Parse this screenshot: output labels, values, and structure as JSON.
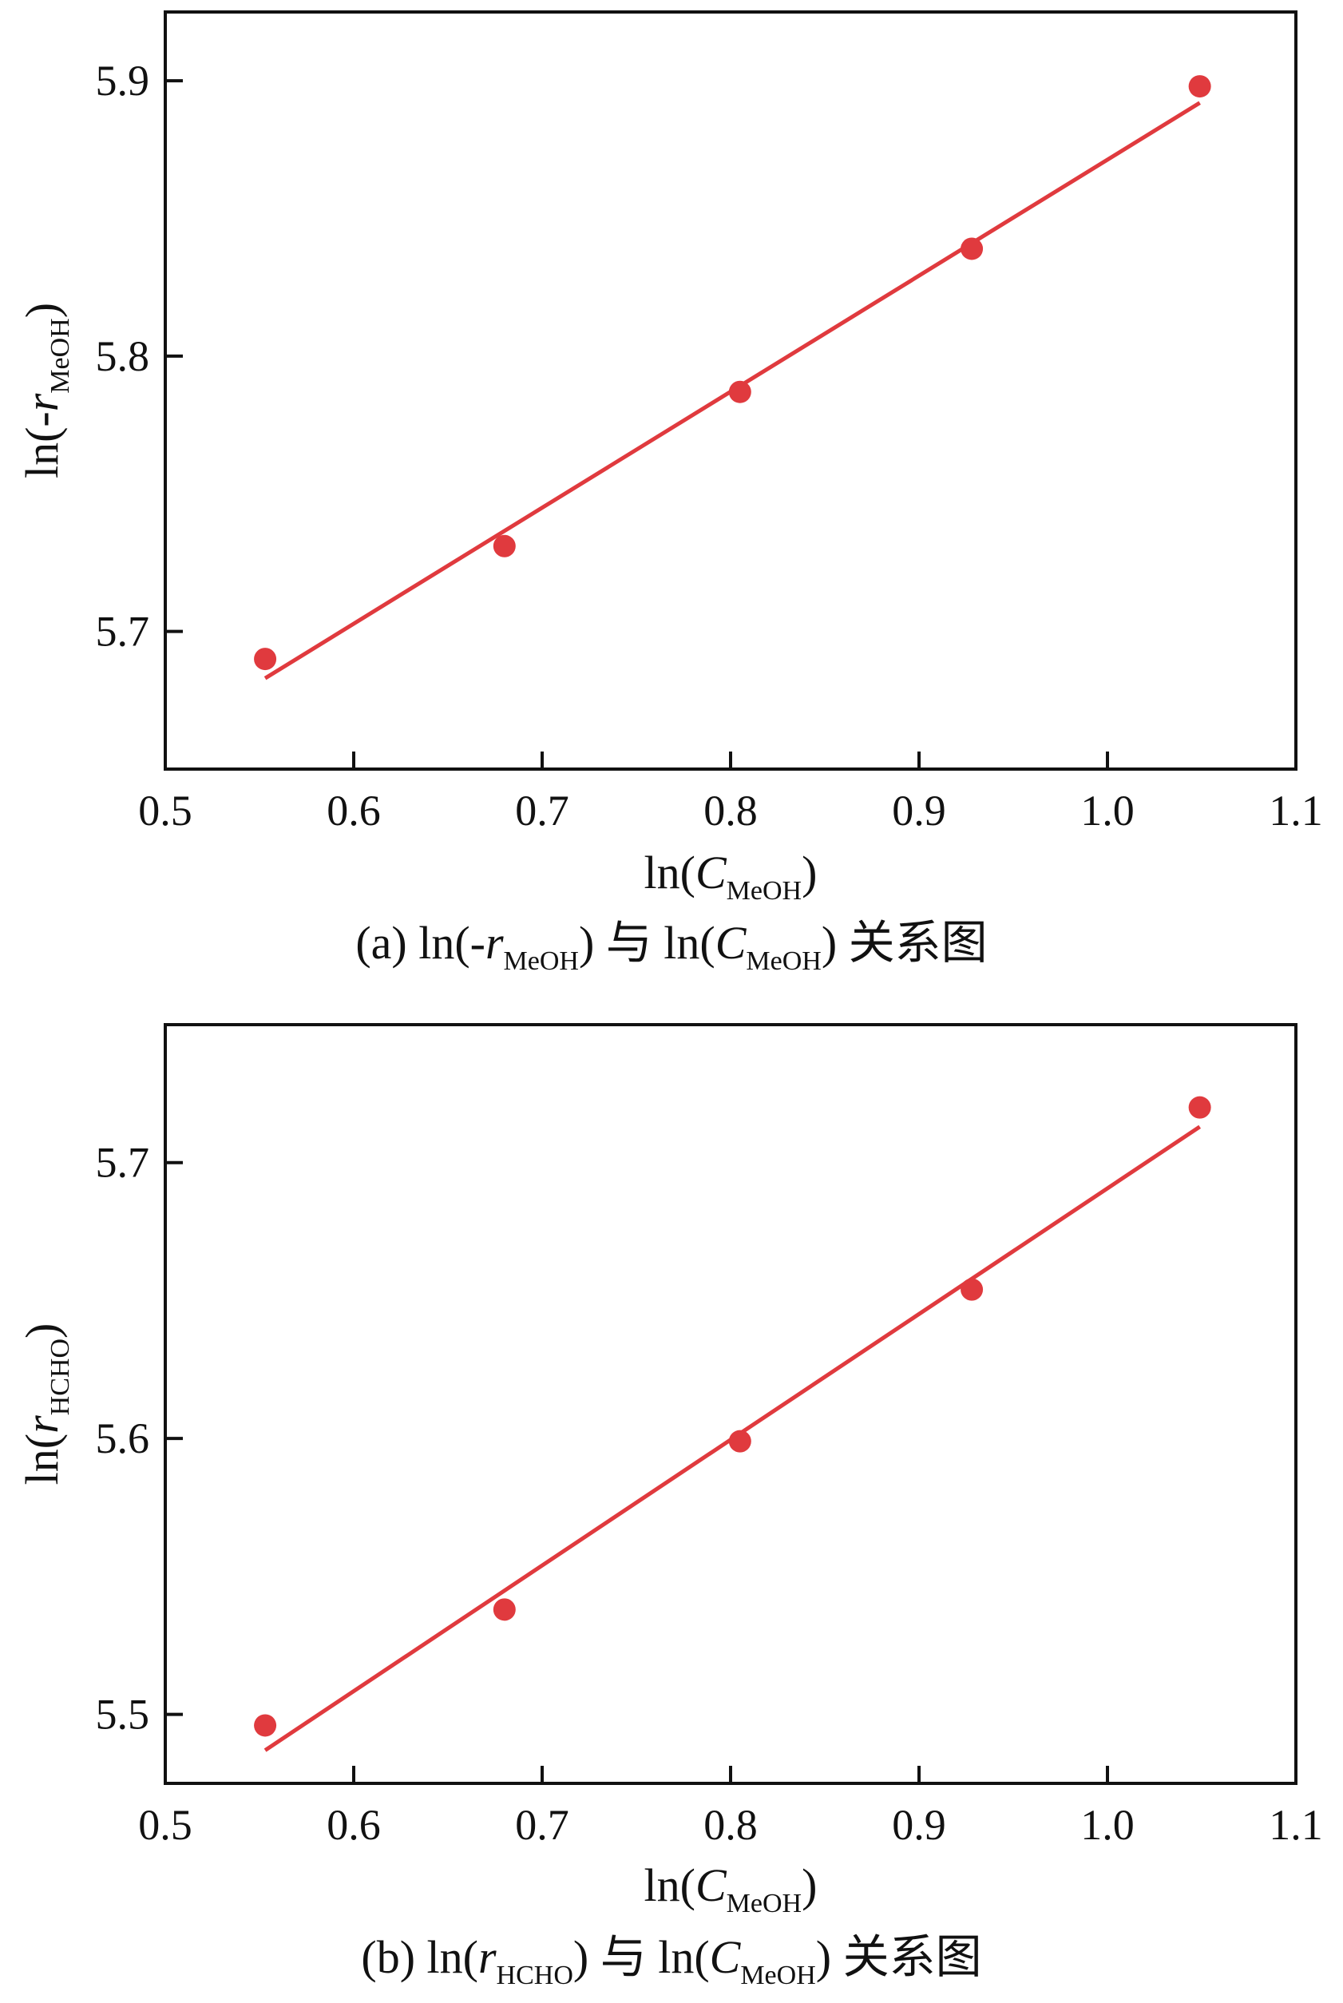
{
  "colors": {
    "series": "#e03a3e",
    "axis": "#111111"
  },
  "chart_data": [
    {
      "type": "scatter",
      "panel": "a",
      "x": [
        0.553,
        0.68,
        0.805,
        0.928,
        1.049
      ],
      "y": [
        5.69,
        5.731,
        5.787,
        5.839,
        5.898
      ],
      "fit_line": {
        "x": [
          0.553,
          1.049
        ],
        "y": [
          5.683,
          5.892
        ]
      },
      "xlim": [
        0.5,
        1.1
      ],
      "ylim": [
        5.65,
        5.925
      ],
      "xticks": [
        0.5,
        0.6,
        0.7,
        0.8,
        0.9,
        1.0,
        1.1
      ],
      "xtick_labels": [
        "0.5",
        "0.6",
        "0.7",
        "0.8",
        "0.9",
        "1.0",
        "1.1"
      ],
      "yticks": [
        5.7,
        5.8,
        5.9
      ],
      "ytick_labels": [
        "5.7",
        "5.8",
        "5.9"
      ],
      "xlabel": {
        "main": "ln(",
        "var": "C",
        "sub": "MeOH",
        "close": ")"
      },
      "ylabel": {
        "main": "ln(-",
        "var": "r",
        "sub": "MeOH",
        "close": ")"
      },
      "caption": {
        "p1": "(a) ln(-",
        "v1": "r",
        "s1": "MeOH",
        "p2": ") 与 ln(",
        "v2": "C",
        "s2": "MeOH",
        "p3": ") 关系图"
      }
    },
    {
      "type": "scatter",
      "panel": "b",
      "x": [
        0.553,
        0.68,
        0.805,
        0.928,
        1.049
      ],
      "y": [
        5.496,
        5.538,
        5.599,
        5.654,
        5.72
      ],
      "fit_line": {
        "x": [
          0.553,
          1.049
        ],
        "y": [
          5.487,
          5.713
        ]
      },
      "xlim": [
        0.5,
        1.1
      ],
      "ylim": [
        5.475,
        5.75
      ],
      "xticks": [
        0.5,
        0.6,
        0.7,
        0.8,
        0.9,
        1.0,
        1.1
      ],
      "xtick_labels": [
        "0.5",
        "0.6",
        "0.7",
        "0.8",
        "0.9",
        "1.0",
        "1.1"
      ],
      "yticks": [
        5.5,
        5.6,
        5.7
      ],
      "ytick_labels": [
        "5.5",
        "5.6",
        "5.7"
      ],
      "xlabel": {
        "main": "ln(",
        "var": "C",
        "sub": "MeOH",
        "close": ")"
      },
      "ylabel": {
        "main": "ln(",
        "var": "r",
        "sub": "HCHO",
        "close": ")"
      },
      "caption": {
        "p1": "(b) ln(",
        "v1": "r",
        "s1": "HCHO",
        "p2": ") 与 ln(",
        "v2": "C",
        "s2": "MeOH",
        "p3": ") 关系图"
      }
    }
  ]
}
